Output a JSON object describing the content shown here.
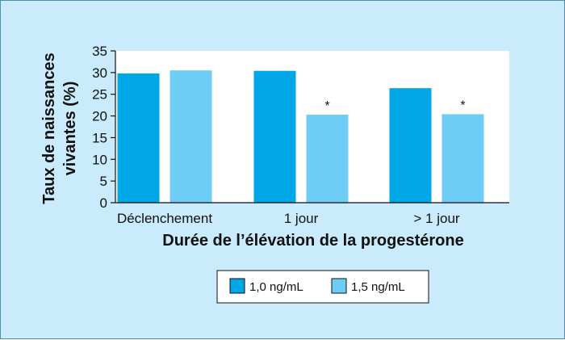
{
  "chart_data": {
    "type": "bar",
    "title": "",
    "xlabel": "Durée de l’élévation de la progestérone",
    "ylabel_lines": [
      "Taux de naissances",
      "vivantes (%)"
    ],
    "categories": [
      "Déclenchement",
      "1 jour",
      "> 1 jour"
    ],
    "ylim": [
      0,
      35
    ],
    "yticks": [
      0,
      5,
      10,
      15,
      20,
      25,
      30,
      35
    ],
    "grid": false,
    "legend_position": "bottom-center",
    "series": [
      {
        "name": "1,0 ng/mL",
        "color": "#00a7e6",
        "values": [
          29.8,
          30.4,
          26.4
        ],
        "annotations": [
          "",
          "",
          ""
        ]
      },
      {
        "name": "1,5 ng/mL",
        "color": "#6dcdf5",
        "values": [
          30.5,
          20.3,
          20.4
        ],
        "annotations": [
          "",
          "*",
          "*"
        ]
      }
    ]
  }
}
